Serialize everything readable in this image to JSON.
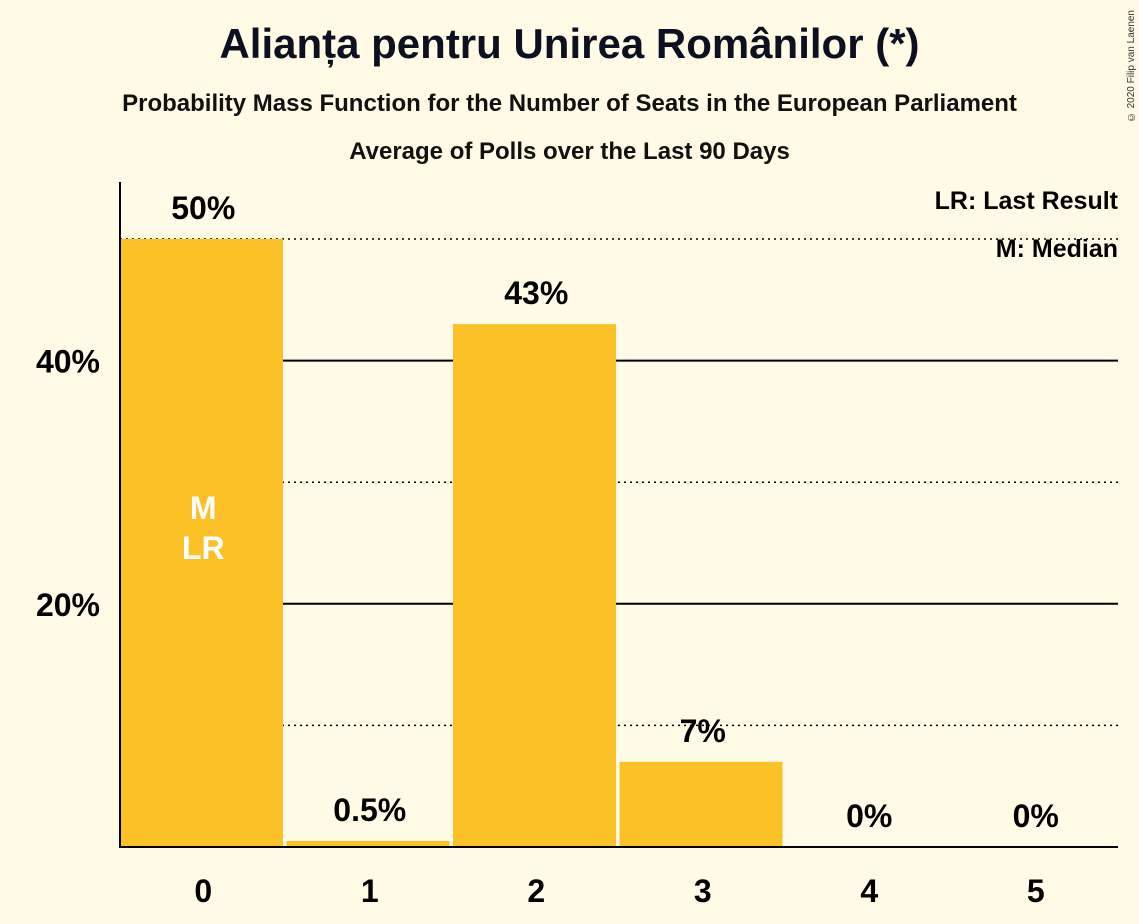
{
  "title": "Alianța pentru Unirea Românilor (*)",
  "subtitle": "Probability Mass Function for the Number of Seats in the European Parliament",
  "subtitle2": "Average of Polls over the Last 90 Days",
  "copyright": "© 2020 Filip van Laenen",
  "legend": {
    "last_result": "LR: Last Result",
    "median": "M: Median"
  },
  "colors": {
    "bar": "#FCC126",
    "background": "#FFFBE6",
    "axis": "#000000"
  },
  "chart_data": {
    "type": "bar",
    "categories": [
      "0",
      "1",
      "2",
      "3",
      "4",
      "5"
    ],
    "values": [
      50,
      0.5,
      43,
      7,
      0,
      0
    ],
    "value_labels": [
      "50%",
      "0.5%",
      "43%",
      "7%",
      "0%",
      "0%"
    ],
    "ylim": [
      0,
      55
    ],
    "yticks_major": [
      20,
      40
    ],
    "ytick_labels": [
      "20%",
      "40%"
    ],
    "yticks_minor": [
      10,
      30,
      50
    ],
    "median_category": "0",
    "last_result_category": "0",
    "marker_labels": [
      "M",
      "LR"
    ]
  }
}
